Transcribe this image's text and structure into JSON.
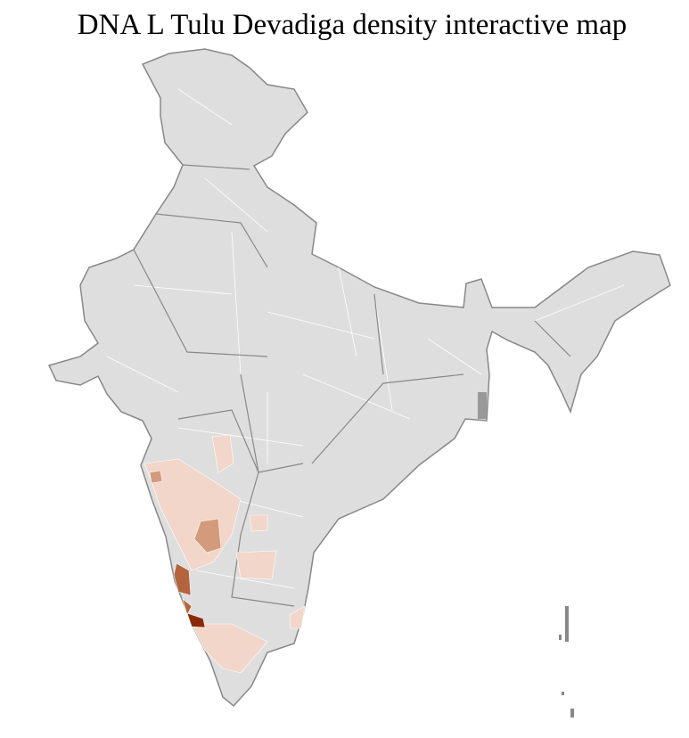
{
  "title": "DNA L Tulu Devadiga density interactive map",
  "colors": {
    "base": "#dedede",
    "district_border": "#ffffff",
    "state_border": "#888888",
    "density_low": "#f1d6c9",
    "density_mid": "#d39b7c",
    "density_high": "#b5633f",
    "density_max": "#8b2a06"
  }
}
